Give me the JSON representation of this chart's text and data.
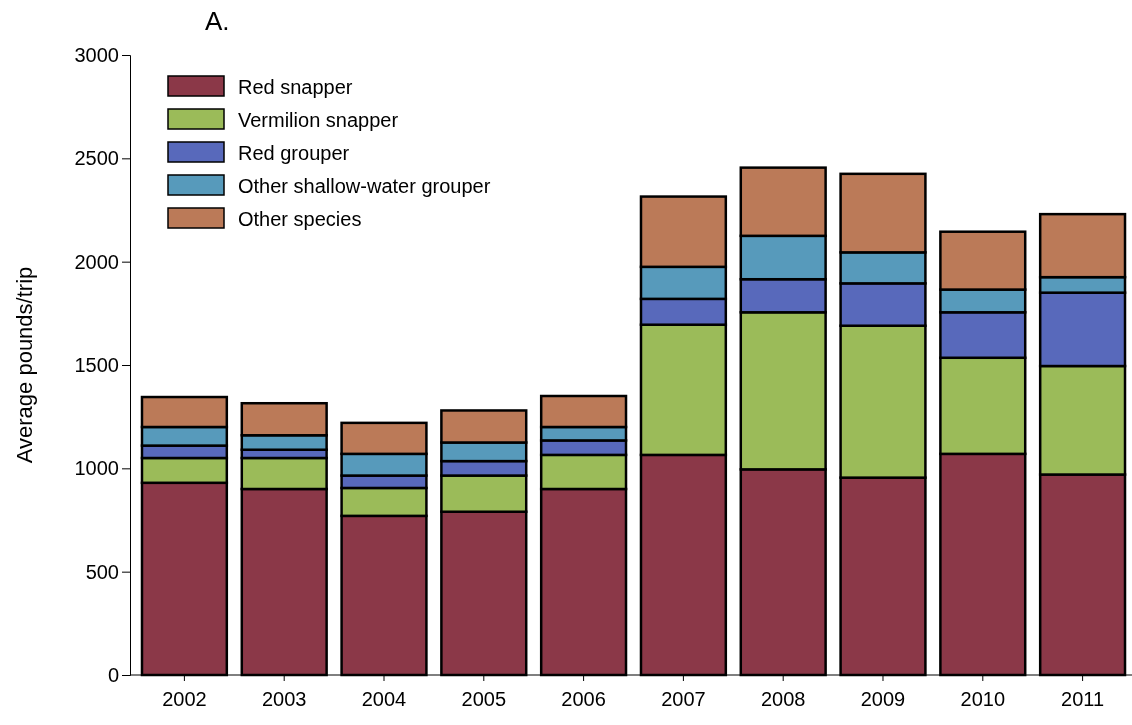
{
  "chart_data": {
    "type": "bar",
    "title": "A.",
    "ylabel": "Average pounds/trip",
    "stacked": true,
    "legend": "top left",
    "grid": false,
    "categories": [
      "2002",
      "2003",
      "2004",
      "2005",
      "2006",
      "2007",
      "2008",
      "2009",
      "2010",
      "2011"
    ],
    "ylim": [
      0,
      3000
    ],
    "yticks": [
      0,
      500,
      1000,
      1500,
      2000,
      2500,
      3000
    ],
    "series": [
      {
        "name": "Red snapper",
        "color": "#8b3848",
        "values": [
          930,
          900,
          770,
          790,
          900,
          1065,
          995,
          955,
          1070,
          970
        ]
      },
      {
        "name": "Vermilion snapper",
        "color": "#9bbb59",
        "values": [
          120,
          150,
          135,
          175,
          165,
          630,
          760,
          735,
          465,
          525
        ]
      },
      {
        "name": "Red grouper",
        "color": "#5869bb",
        "values": [
          60,
          40,
          60,
          70,
          70,
          125,
          160,
          205,
          220,
          355
        ]
      },
      {
        "name": "Other shallow-water grouper",
        "color": "#579abb",
        "values": [
          90,
          70,
          105,
          90,
          65,
          155,
          210,
          150,
          110,
          75
        ]
      },
      {
        "name": "Other species",
        "color": "#bb7a58",
        "values": [
          145,
          155,
          150,
          155,
          150,
          340,
          330,
          380,
          280,
          305
        ]
      }
    ]
  }
}
